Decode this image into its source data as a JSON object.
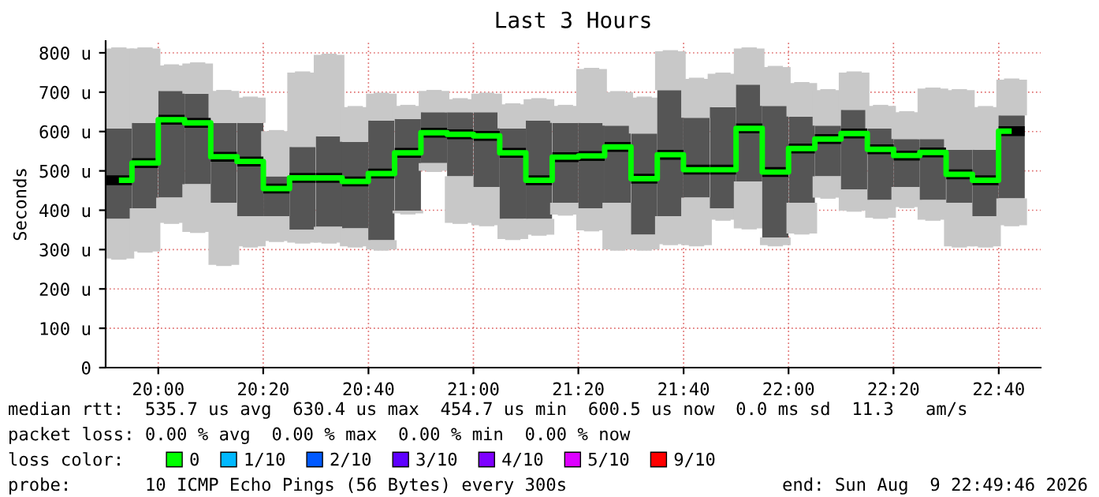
{
  "chart_data": {
    "type": "box",
    "title": "Last 3 Hours",
    "ylabel": "Seconds",
    "x": [
      19.875,
      19.958,
      20.042,
      20.125,
      20.208,
      20.292,
      20.375,
      20.458,
      20.542,
      20.625,
      20.708,
      20.792,
      20.875,
      20.958,
      21.042,
      21.125,
      21.208,
      21.292,
      21.375,
      21.458,
      21.542,
      21.625,
      21.708,
      21.792,
      21.875,
      21.958,
      22.042,
      22.125,
      22.208,
      22.292,
      22.375,
      22.458,
      22.542,
      22.625,
      22.708
    ],
    "series": [
      {
        "color": "#555555",
        "boxes": [
          {
            "low": 277,
            "q1": 378,
            "median": 476,
            "q3": 608,
            "high": 811
          },
          {
            "low": 295,
            "q1": 405,
            "median": 520,
            "q3": 622,
            "high": 811
          },
          {
            "low": 368,
            "q1": 432,
            "median": 630,
            "q3": 703,
            "high": 768
          },
          {
            "low": 345,
            "q1": 466,
            "median": 622,
            "q3": 696,
            "high": 773
          },
          {
            "low": 261,
            "q1": 419,
            "median": 536,
            "q3": 622,
            "high": 703
          },
          {
            "low": 308,
            "q1": 385,
            "median": 524,
            "q3": 622,
            "high": 686
          },
          {
            "low": 322,
            "q1": 385,
            "median": 455,
            "q3": 486,
            "high": 601
          },
          {
            "low": 318,
            "q1": 351,
            "median": 482,
            "q3": 561,
            "high": 750
          },
          {
            "low": 318,
            "q1": 358,
            "median": 482,
            "q3": 588,
            "high": 795
          },
          {
            "low": 308,
            "q1": 354,
            "median": 473,
            "q3": 574,
            "high": 662
          },
          {
            "low": 300,
            "q1": 324,
            "median": 493,
            "q3": 628,
            "high": 696
          },
          {
            "low": 392,
            "q1": 399,
            "median": 546,
            "q3": 632,
            "high": 665
          },
          {
            "low": 500,
            "q1": 520,
            "median": 597,
            "q3": 649,
            "high": 703
          },
          {
            "low": 368,
            "q1": 486,
            "median": 593,
            "q3": 649,
            "high": 682
          },
          {
            "low": 362,
            "q1": 459,
            "median": 589,
            "q3": 649,
            "high": 696
          },
          {
            "low": 327,
            "q1": 378,
            "median": 546,
            "q3": 608,
            "high": 669
          },
          {
            "low": 338,
            "q1": 378,
            "median": 476,
            "q3": 628,
            "high": 682
          },
          {
            "low": 389,
            "q1": 419,
            "median": 535,
            "q3": 622,
            "high": 665
          },
          {
            "low": 349,
            "q1": 405,
            "median": 538,
            "q3": 622,
            "high": 759
          },
          {
            "low": 300,
            "q1": 419,
            "median": 561,
            "q3": 615,
            "high": 700
          },
          {
            "low": 300,
            "q1": 338,
            "median": 480,
            "q3": 595,
            "high": 686
          },
          {
            "low": 314,
            "q1": 385,
            "median": 541,
            "q3": 705,
            "high": 804
          },
          {
            "low": 311,
            "q1": 432,
            "median": 503,
            "q3": 635,
            "high": 734
          },
          {
            "low": 376,
            "q1": 405,
            "median": 503,
            "q3": 662,
            "high": 747
          },
          {
            "low": 354,
            "q1": 473,
            "median": 608,
            "q3": 719,
            "high": 811
          },
          {
            "low": 311,
            "q1": 331,
            "median": 497,
            "q3": 665,
            "high": 764
          },
          {
            "low": 341,
            "q1": 419,
            "median": 557,
            "q3": 638,
            "high": 723
          },
          {
            "low": 432,
            "q1": 486,
            "median": 581,
            "q3": 615,
            "high": 705
          },
          {
            "low": 399,
            "q1": 453,
            "median": 595,
            "q3": 655,
            "high": 750
          },
          {
            "low": 381,
            "q1": 426,
            "median": 555,
            "q3": 608,
            "high": 665
          },
          {
            "low": 408,
            "q1": 459,
            "median": 539,
            "q3": 581,
            "high": 649
          },
          {
            "low": 376,
            "q1": 426,
            "median": 547,
            "q3": 581,
            "high": 709
          },
          {
            "low": 308,
            "q1": 419,
            "median": 491,
            "q3": 554,
            "high": 705
          },
          {
            "low": 308,
            "q1": 385,
            "median": 476,
            "q3": 554,
            "high": 662
          },
          {
            "low": 362,
            "q1": 430,
            "median": 601,
            "q3": 641,
            "high": 732
          }
        ]
      },
      {
        "name": "0",
        "type": "step",
        "color": "#00ff00",
        "values": [
          476,
          520,
          630,
          622,
          536,
          524,
          455,
          482,
          482,
          473,
          493,
          546,
          597,
          593,
          589,
          546,
          476,
          535,
          538,
          561,
          480,
          541,
          503,
          503,
          608,
          497,
          557,
          581,
          595,
          555,
          539,
          547,
          491,
          476,
          601
        ]
      },
      {
        "name": "1/10",
        "color": "#00b8ff",
        "values": [
          null,
          null,
          null,
          null,
          null,
          null,
          null,
          null,
          null,
          null,
          null,
          null,
          null,
          null,
          null,
          null,
          null,
          null,
          null,
          null,
          null,
          null,
          null,
          null,
          null,
          null,
          null,
          null,
          null,
          null,
          null,
          null,
          null,
          null,
          null
        ]
      },
      {
        "name": "2/10",
        "color": "#0059ff",
        "values": [
          null,
          null,
          null,
          null,
          null,
          null,
          null,
          null,
          null,
          null,
          null,
          null,
          null,
          null,
          null,
          null,
          null,
          null,
          null,
          null,
          null,
          null,
          null,
          null,
          null,
          null,
          null,
          null,
          null,
          null,
          null,
          null,
          null,
          null,
          null
        ]
      },
      {
        "name": "3/10",
        "color": "#5e00ff",
        "values": [
          null,
          null,
          null,
          null,
          null,
          null,
          null,
          null,
          null,
          null,
          null,
          null,
          null,
          null,
          null,
          null,
          null,
          null,
          null,
          null,
          null,
          null,
          null,
          null,
          null,
          null,
          null,
          null,
          null,
          null,
          null,
          null,
          null,
          null,
          null
        ]
      },
      {
        "name": "4/10",
        "color": "#7e00ff",
        "values": [
          null,
          null,
          null,
          null,
          null,
          null,
          null,
          null,
          null,
          null,
          null,
          null,
          null,
          null,
          null,
          null,
          null,
          null,
          null,
          null,
          null,
          null,
          null,
          null,
          null,
          null,
          null,
          null,
          null,
          null,
          null,
          null,
          null,
          null,
          null
        ]
      },
      {
        "name": "5/10",
        "color": "#dd00ff",
        "values": [
          null,
          null,
          null,
          null,
          null,
          null,
          null,
          null,
          null,
          null,
          null,
          null,
          null,
          null,
          null,
          null,
          null,
          null,
          null,
          null,
          null,
          null,
          null,
          null,
          null,
          null,
          null,
          null,
          null,
          null,
          null,
          null,
          null,
          null,
          null
        ]
      },
      {
        "name": "9/10",
        "color": "#ff0000",
        "values": [
          null,
          null,
          null,
          null,
          null,
          null,
          null,
          null,
          null,
          null,
          null,
          null,
          null,
          null,
          null,
          null,
          null,
          null,
          null,
          null,
          null,
          null,
          null,
          null,
          null,
          null,
          null,
          null,
          null,
          null,
          null,
          null,
          null,
          null,
          null
        ]
      }
    ],
    "xlim": [
      19.833,
      22.8
    ],
    "xticks": [
      {
        "value": 20,
        "label": "20:00"
      },
      {
        "value": 20.333,
        "label": "20:20"
      },
      {
        "value": 20.667,
        "label": "20:40"
      },
      {
        "value": 21,
        "label": "21:00"
      },
      {
        "value": 21.333,
        "label": "21:20"
      },
      {
        "value": 21.667,
        "label": "21:40"
      },
      {
        "value": 22,
        "label": "22:00"
      },
      {
        "value": 22.333,
        "label": "22:20"
      },
      {
        "value": 22.667,
        "label": "22:40"
      }
    ],
    "ylim": [
      0,
      830
    ],
    "yticks": [
      {
        "value": 0,
        "label": "0"
      },
      {
        "value": 100,
        "label": "100 u"
      },
      {
        "value": 200,
        "label": "200 u"
      },
      {
        "value": 300,
        "label": "300 u"
      },
      {
        "value": 400,
        "label": "400 u"
      },
      {
        "value": 500,
        "label": "500 u"
      },
      {
        "value": 600,
        "label": "600 u"
      },
      {
        "value": 700,
        "label": "700 u"
      },
      {
        "value": 800,
        "label": "800 u"
      }
    ],
    "grid": true,
    "legend": "bottom",
    "legend_title": "loss color:",
    "annotations": [
      "median rtt:  535.7 us avg  630.4 us max  454.7 us min  600.5 us now  0.0 ms sd  11.3   am/s",
      "packet loss: 0.00 % avg  0.00 % max  0.00 % min  0.00 % now",
      "probe:       10 ICMP Echo Pings (56 Bytes) every 300s",
      "end: Sun Aug  9 22:49:46 2026"
    ]
  }
}
